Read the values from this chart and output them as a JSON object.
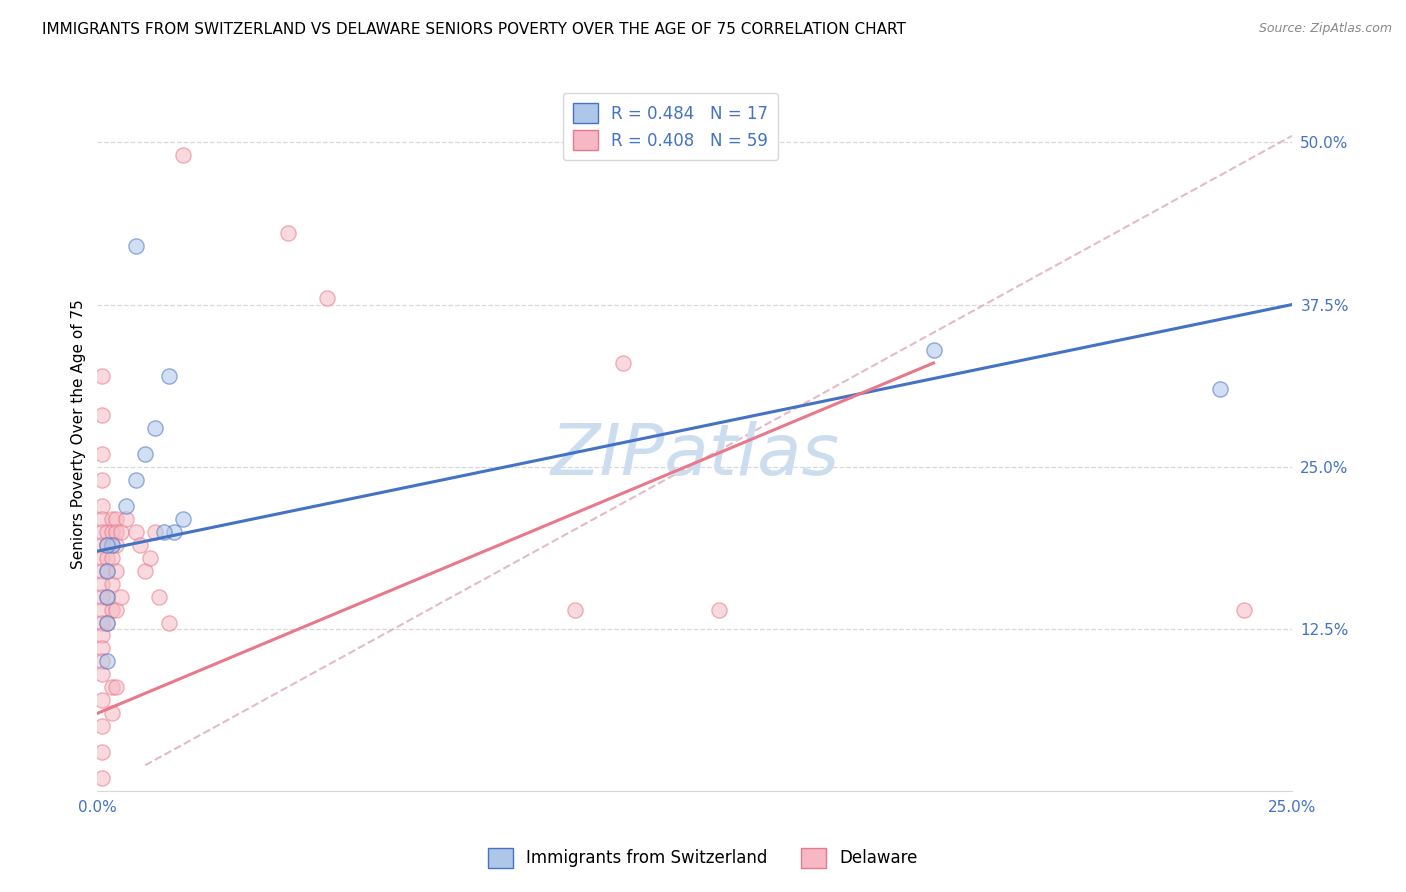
{
  "title": "IMMIGRANTS FROM SWITZERLAND VS DELAWARE SENIORS POVERTY OVER THE AGE OF 75 CORRELATION CHART",
  "source": "Source: ZipAtlas.com",
  "ylabel": "Seniors Poverty Over the Age of 75",
  "x_tick_labels": [
    "0.0%",
    "",
    "",
    "",
    "25.0%"
  ],
  "y_tick_labels": [
    "12.5%",
    "25.0%",
    "37.5%",
    "50.0%"
  ],
  "x_range": [
    0.0,
    0.25
  ],
  "y_range": [
    0.0,
    0.55
  ],
  "y_ticks": [
    0.125,
    0.25,
    0.375,
    0.5
  ],
  "x_ticks": [
    0.0,
    0.0625,
    0.125,
    0.1875,
    0.25
  ],
  "legend_r_blue": "R = 0.484",
  "legend_n_blue": "N = 17",
  "legend_r_pink": "R = 0.408",
  "legend_n_pink": "N = 59",
  "legend_label_blue": "Immigrants from Switzerland",
  "legend_label_pink": "Delaware",
  "blue_color": "#aec6e8",
  "pink_color": "#f5b8c4",
  "blue_line_color": "#4472c4",
  "pink_line_color": "#e8788a",
  "dashed_line_color": "#e0b0ba",
  "watermark": "ZIPatlas",
  "blue_scatter": [
    [
      0.008,
      0.42
    ],
    [
      0.015,
      0.32
    ],
    [
      0.012,
      0.28
    ],
    [
      0.01,
      0.26
    ],
    [
      0.008,
      0.24
    ],
    [
      0.006,
      0.22
    ],
    [
      0.018,
      0.21
    ],
    [
      0.016,
      0.2
    ],
    [
      0.014,
      0.2
    ],
    [
      0.003,
      0.19
    ],
    [
      0.002,
      0.19
    ],
    [
      0.002,
      0.17
    ],
    [
      0.002,
      0.15
    ],
    [
      0.002,
      0.13
    ],
    [
      0.002,
      0.1
    ],
    [
      0.175,
      0.34
    ],
    [
      0.235,
      0.31
    ]
  ],
  "pink_scatter": [
    [
      0.018,
      0.49
    ],
    [
      0.04,
      0.43
    ],
    [
      0.048,
      0.38
    ],
    [
      0.11,
      0.33
    ],
    [
      0.001,
      0.32
    ],
    [
      0.001,
      0.29
    ],
    [
      0.001,
      0.26
    ],
    [
      0.001,
      0.24
    ],
    [
      0.001,
      0.22
    ],
    [
      0.001,
      0.21
    ],
    [
      0.001,
      0.2
    ],
    [
      0.001,
      0.19
    ],
    [
      0.001,
      0.18
    ],
    [
      0.001,
      0.17
    ],
    [
      0.001,
      0.16
    ],
    [
      0.001,
      0.15
    ],
    [
      0.001,
      0.14
    ],
    [
      0.001,
      0.13
    ],
    [
      0.001,
      0.12
    ],
    [
      0.001,
      0.11
    ],
    [
      0.001,
      0.1
    ],
    [
      0.001,
      0.09
    ],
    [
      0.001,
      0.07
    ],
    [
      0.001,
      0.05
    ],
    [
      0.001,
      0.03
    ],
    [
      0.001,
      0.01
    ],
    [
      0.002,
      0.2
    ],
    [
      0.002,
      0.19
    ],
    [
      0.002,
      0.18
    ],
    [
      0.002,
      0.17
    ],
    [
      0.002,
      0.15
    ],
    [
      0.002,
      0.13
    ],
    [
      0.003,
      0.21
    ],
    [
      0.003,
      0.2
    ],
    [
      0.003,
      0.19
    ],
    [
      0.003,
      0.18
    ],
    [
      0.003,
      0.16
    ],
    [
      0.003,
      0.14
    ],
    [
      0.003,
      0.08
    ],
    [
      0.003,
      0.06
    ],
    [
      0.004,
      0.21
    ],
    [
      0.004,
      0.2
    ],
    [
      0.004,
      0.19
    ],
    [
      0.004,
      0.17
    ],
    [
      0.004,
      0.14
    ],
    [
      0.004,
      0.08
    ],
    [
      0.005,
      0.2
    ],
    [
      0.005,
      0.15
    ],
    [
      0.006,
      0.21
    ],
    [
      0.008,
      0.2
    ],
    [
      0.009,
      0.19
    ],
    [
      0.01,
      0.17
    ],
    [
      0.011,
      0.18
    ],
    [
      0.012,
      0.2
    ],
    [
      0.013,
      0.15
    ],
    [
      0.015,
      0.13
    ],
    [
      0.1,
      0.14
    ],
    [
      0.13,
      0.14
    ],
    [
      0.24,
      0.14
    ]
  ],
  "blue_line": {
    "x0": 0.0,
    "y0": 0.185,
    "x1": 0.25,
    "y1": 0.375
  },
  "pink_line": {
    "x0": 0.0,
    "y0": 0.06,
    "x1": 0.175,
    "y1": 0.33
  },
  "dashed_line": {
    "x0": 0.01,
    "y0": 0.02,
    "x1": 0.25,
    "y1": 0.505
  },
  "grid_color": "#d8d8d8",
  "background_color": "#ffffff",
  "title_fontsize": 11,
  "source_fontsize": 9,
  "axis_label_fontsize": 11,
  "tick_fontsize": 11,
  "watermark_fontsize": 52,
  "watermark_color": "#ccddf0",
  "legend_fontsize": 12,
  "scatter_size": 120,
  "scatter_alpha": 0.55,
  "scatter_linewidth": 1.0
}
